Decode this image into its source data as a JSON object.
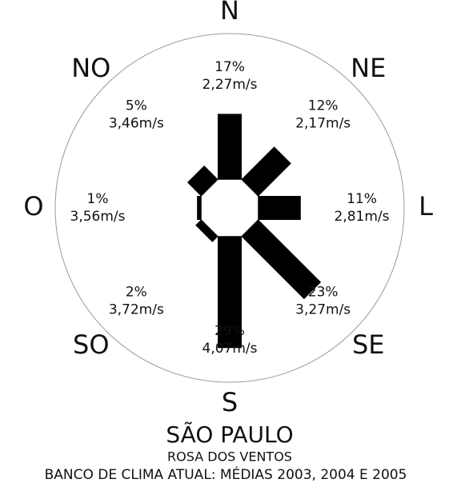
{
  "chart_data": {
    "type": "wind_rose",
    "title": "SÃO PAULO",
    "subtitle": "ROSA DOS VENTOS",
    "caption": "BANCO DE CLIMA ATUAL: MÉDIAS 2003, 2004 E 2005",
    "categories": [
      "N",
      "NE",
      "L",
      "SE",
      "S",
      "SO",
      "O",
      "NO"
    ],
    "values": [
      17,
      12,
      11,
      23,
      29,
      2,
      1,
      5
    ],
    "value_labels": [
      "17%",
      "12%",
      "11%",
      "23%",
      "29%",
      "2%",
      "1%",
      "5%"
    ],
    "speed_labels": [
      "2,27m/s",
      "2,17m/s",
      "2,81m/s",
      "3,27m/s",
      "4,07m/s",
      "3,72m/s",
      "3,56m/s",
      "3,46m/s"
    ],
    "color": "#000000"
  }
}
